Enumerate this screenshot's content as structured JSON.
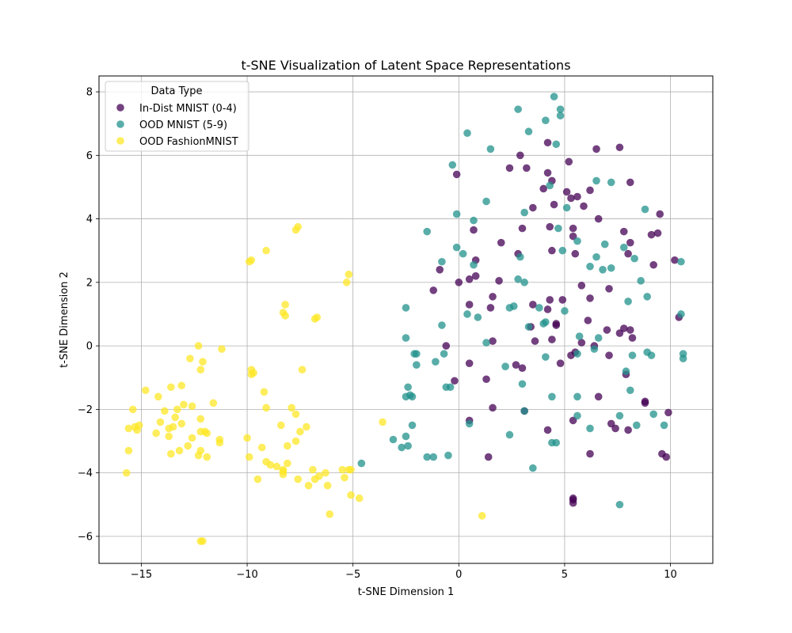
{
  "chart_data": {
    "type": "scatter",
    "title": "t-SNE Visualization of Latent Space Representations",
    "xlabel": "t-SNE Dimension 1",
    "ylabel": "t-SNE Dimension 2",
    "xlim": [
      -17,
      12
    ],
    "ylim": [
      -6.85,
      8.5
    ],
    "xticks": [
      -15,
      -10,
      -5,
      0,
      5,
      10
    ],
    "yticks": [
      -6,
      -4,
      -2,
      0,
      2,
      4,
      6,
      8
    ],
    "xtick_labels": [
      "−15",
      "−10",
      "−5",
      "0",
      "5",
      "10"
    ],
    "ytick_labels": [
      "−6",
      "−4",
      "−2",
      "0",
      "2",
      "4",
      "6",
      "8"
    ],
    "grid": true,
    "legend": {
      "title": "Data Type",
      "placement": "top-left"
    },
    "series": [
      {
        "name": "In-Dist MNIST (0-4)",
        "color": "#440154",
        "points": [
          [
            -0.1,
            5.4
          ],
          [
            -1.2,
            1.75
          ],
          [
            -0.9,
            2.4
          ],
          [
            -0.6,
            0.0
          ],
          [
            -0.2,
            -1.1
          ],
          [
            0.0,
            2.0
          ],
          [
            0.5,
            1.3
          ],
          [
            0.5,
            2.1
          ],
          [
            0.8,
            2.2
          ],
          [
            0.8,
            2.7
          ],
          [
            0.7,
            3.65
          ],
          [
            0.5,
            -0.55
          ],
          [
            0.5,
            -2.35
          ],
          [
            1.3,
            -1.05
          ],
          [
            1.4,
            -3.5
          ],
          [
            1.5,
            1.2
          ],
          [
            1.6,
            1.55
          ],
          [
            1.6,
            0.15
          ],
          [
            1.6,
            -1.95
          ],
          [
            1.9,
            2.05
          ],
          [
            2.0,
            3.25
          ],
          [
            2.4,
            5.6
          ],
          [
            2.9,
            6.0
          ],
          [
            2.8,
            2.9
          ],
          [
            2.7,
            -0.6
          ],
          [
            3.0,
            3.7
          ],
          [
            3.0,
            -0.7
          ],
          [
            3.1,
            -2.05
          ],
          [
            3.2,
            5.6
          ],
          [
            3.4,
            0.6
          ],
          [
            3.5,
            1.3
          ],
          [
            3.5,
            4.35
          ],
          [
            3.6,
            0.15
          ],
          [
            4.0,
            4.95
          ],
          [
            4.2,
            6.4
          ],
          [
            4.2,
            5.45
          ],
          [
            4.4,
            5.2
          ],
          [
            4.3,
            3.75
          ],
          [
            4.4,
            3.0
          ],
          [
            4.5,
            4.45
          ],
          [
            4.3,
            1.45
          ],
          [
            4.4,
            0.2
          ],
          [
            4.6,
            0.7
          ],
          [
            4.2,
            1.15
          ],
          [
            4.6,
            0.65
          ],
          [
            4.2,
            -2.65
          ],
          [
            4.9,
            1.45
          ],
          [
            4.8,
            -0.55
          ],
          [
            5.1,
            4.85
          ],
          [
            5.2,
            5.8
          ],
          [
            5.3,
            4.65
          ],
          [
            5.4,
            3.7
          ],
          [
            5.4,
            3.45
          ],
          [
            5.5,
            2.9
          ],
          [
            5.6,
            4.7
          ],
          [
            5.3,
            -0.3
          ],
          [
            5.5,
            -0.2
          ],
          [
            5.4,
            -2.35
          ],
          [
            5.4,
            -4.8
          ],
          [
            5.4,
            -4.85
          ],
          [
            5.4,
            -4.95
          ],
          [
            5.8,
            1.9
          ],
          [
            5.9,
            4.4
          ],
          [
            6.1,
            0.8
          ],
          [
            5.8,
            0.1
          ],
          [
            6.2,
            1.5
          ],
          [
            6.2,
            4.9
          ],
          [
            6.2,
            -3.4
          ],
          [
            6.4,
            0.0
          ],
          [
            6.5,
            6.2
          ],
          [
            6.6,
            4.0
          ],
          [
            6.6,
            -1.6
          ],
          [
            7.0,
            0.5
          ],
          [
            7.1,
            1.8
          ],
          [
            7.1,
            -0.3
          ],
          [
            7.2,
            -2.45
          ],
          [
            7.4,
            -2.6
          ],
          [
            7.6,
            6.25
          ],
          [
            7.6,
            0.4
          ],
          [
            7.8,
            3.6
          ],
          [
            7.8,
            0.55
          ],
          [
            8.0,
            2.9
          ],
          [
            8.1,
            5.15
          ],
          [
            8.1,
            3.25
          ],
          [
            8.1,
            0.5
          ],
          [
            8.2,
            0.25
          ],
          [
            7.9,
            -0.9
          ],
          [
            8.0,
            -2.65
          ],
          [
            8.8,
            -1.75
          ],
          [
            8.8,
            -1.8
          ],
          [
            9.1,
            3.5
          ],
          [
            9.2,
            2.55
          ],
          [
            9.4,
            3.55
          ],
          [
            9.5,
            4.15
          ],
          [
            9.6,
            -3.4
          ],
          [
            9.8,
            -3.5
          ],
          [
            9.9,
            -2.1
          ],
          [
            10.2,
            2.7
          ],
          [
            10.4,
            0.9
          ]
        ]
      },
      {
        "name": "OOD MNIST (5-9)",
        "color": "#21918c",
        "points": [
          [
            -4.6,
            -3.7
          ],
          [
            -3.1,
            -2.95
          ],
          [
            -2.7,
            -3.2
          ],
          [
            -2.5,
            1.2
          ],
          [
            -2.5,
            0.25
          ],
          [
            -2.5,
            -1.6
          ],
          [
            -2.5,
            -2.85
          ],
          [
            -2.4,
            -1.3
          ],
          [
            -2.4,
            -3.15
          ],
          [
            -2.3,
            -1.55
          ],
          [
            -2.2,
            -1.6
          ],
          [
            -2.2,
            -2.5
          ],
          [
            -2.1,
            -0.25
          ],
          [
            -2.0,
            -0.25
          ],
          [
            -2.0,
            -0.6
          ],
          [
            -1.5,
            3.6
          ],
          [
            -1.5,
            -3.5
          ],
          [
            -1.2,
            -3.5
          ],
          [
            -1.1,
            -0.5
          ],
          [
            -0.8,
            2.65
          ],
          [
            -0.8,
            0.65
          ],
          [
            -0.7,
            -0.25
          ],
          [
            -0.6,
            -1.3
          ],
          [
            -0.5,
            -3.45
          ],
          [
            -0.4,
            -1.3
          ],
          [
            -0.3,
            5.7
          ],
          [
            -0.1,
            4.15
          ],
          [
            -0.1,
            3.1
          ],
          [
            0.2,
            2.9
          ],
          [
            0.4,
            6.7
          ],
          [
            0.4,
            1.0
          ],
          [
            0.5,
            -2.45
          ],
          [
            0.7,
            3.95
          ],
          [
            0.7,
            2.55
          ],
          [
            0.9,
            0.9
          ],
          [
            1.3,
            4.55
          ],
          [
            1.3,
            0.1
          ],
          [
            1.5,
            6.2
          ],
          [
            2.2,
            -0.65
          ],
          [
            2.4,
            1.2
          ],
          [
            2.4,
            -2.8
          ],
          [
            2.6,
            1.25
          ],
          [
            2.8,
            7.45
          ],
          [
            2.8,
            2.1
          ],
          [
            2.9,
            2.8
          ],
          [
            3.0,
            -1.2
          ],
          [
            3.1,
            4.2
          ],
          [
            3.1,
            2.0
          ],
          [
            3.1,
            -2.05
          ],
          [
            3.3,
            6.75
          ],
          [
            3.3,
            0.6
          ],
          [
            3.5,
            -3.85
          ],
          [
            3.8,
            1.2
          ],
          [
            4.0,
            0.7
          ],
          [
            4.1,
            7.1
          ],
          [
            4.1,
            0.75
          ],
          [
            4.1,
            -0.35
          ],
          [
            4.3,
            5.05
          ],
          [
            4.4,
            -1.6
          ],
          [
            4.4,
            -3.05
          ],
          [
            4.5,
            7.85
          ],
          [
            4.6,
            6.35
          ],
          [
            4.6,
            -3.05
          ],
          [
            4.7,
            3.7
          ],
          [
            4.8,
            7.25
          ],
          [
            4.8,
            7.45
          ],
          [
            4.9,
            3.0
          ],
          [
            5.0,
            1.1
          ],
          [
            5.1,
            4.35
          ],
          [
            5.6,
            3.3
          ],
          [
            5.7,
            0.3
          ],
          [
            5.6,
            -1.6
          ],
          [
            5.6,
            -2.2
          ],
          [
            5.6,
            -0.25
          ],
          [
            6.2,
            2.5
          ],
          [
            6.2,
            -2.6
          ],
          [
            6.4,
            -0.1
          ],
          [
            6.5,
            5.2
          ],
          [
            6.5,
            2.8
          ],
          [
            6.6,
            0.25
          ],
          [
            6.8,
            2.4
          ],
          [
            6.9,
            3.2
          ],
          [
            7.2,
            5.15
          ],
          [
            7.2,
            2.45
          ],
          [
            7.6,
            -2.2
          ],
          [
            7.6,
            -5.0
          ],
          [
            7.8,
            3.1
          ],
          [
            7.9,
            -0.8
          ],
          [
            8.0,
            1.4
          ],
          [
            8.1,
            -1.4
          ],
          [
            8.2,
            -0.3
          ],
          [
            8.3,
            2.75
          ],
          [
            8.4,
            -2.5
          ],
          [
            8.6,
            2.05
          ],
          [
            8.8,
            4.3
          ],
          [
            8.9,
            1.55
          ],
          [
            8.9,
            -0.2
          ],
          [
            9.1,
            -0.3
          ],
          [
            9.2,
            -2.15
          ],
          [
            9.7,
            -2.5
          ],
          [
            10.5,
            2.65
          ],
          [
            10.5,
            1.0
          ],
          [
            10.6,
            -0.25
          ],
          [
            10.6,
            -0.4
          ]
        ]
      },
      {
        "name": "OOD FashionMNIST",
        "color": "#fde725",
        "points": [
          [
            -15.7,
            -4.0
          ],
          [
            -15.6,
            -3.3
          ],
          [
            -15.6,
            -2.6
          ],
          [
            -15.4,
            -2.0
          ],
          [
            -15.3,
            -2.55
          ],
          [
            -15.2,
            -2.65
          ],
          [
            -15.1,
            -2.5
          ],
          [
            -14.8,
            -1.4
          ],
          [
            -14.3,
            -2.75
          ],
          [
            -14.2,
            -1.6
          ],
          [
            -14.1,
            -2.4
          ],
          [
            -13.9,
            -2.05
          ],
          [
            -13.7,
            -2.6
          ],
          [
            -13.7,
            -2.85
          ],
          [
            -13.6,
            -1.3
          ],
          [
            -13.6,
            -3.4
          ],
          [
            -13.5,
            -2.55
          ],
          [
            -13.4,
            -2.25
          ],
          [
            -13.3,
            -2.0
          ],
          [
            -13.2,
            -3.3
          ],
          [
            -13.1,
            -1.25
          ],
          [
            -13.1,
            -2.45
          ],
          [
            -13.0,
            -1.85
          ],
          [
            -12.8,
            -3.15
          ],
          [
            -12.7,
            -0.4
          ],
          [
            -12.6,
            -1.9
          ],
          [
            -12.6,
            -2.9
          ],
          [
            -12.3,
            0.0
          ],
          [
            -12.2,
            -0.75
          ],
          [
            -12.2,
            -2.3
          ],
          [
            -12.1,
            -0.5
          ],
          [
            -12.2,
            -2.7
          ],
          [
            -12.2,
            -3.3
          ],
          [
            -12.3,
            -3.45
          ],
          [
            -12.0,
            -2.7
          ],
          [
            -11.9,
            -2.75
          ],
          [
            -11.9,
            -3.5
          ],
          [
            -11.6,
            -1.8
          ],
          [
            -11.3,
            -2.95
          ],
          [
            -11.2,
            -0.1
          ],
          [
            -11.3,
            -3.05
          ],
          [
            -12.1,
            -6.15
          ],
          [
            -12.2,
            -6.15
          ],
          [
            -10.0,
            -2.9
          ],
          [
            -9.9,
            -3.5
          ],
          [
            -9.9,
            2.65
          ],
          [
            -9.8,
            2.7
          ],
          [
            -9.8,
            -0.75
          ],
          [
            -9.7,
            -0.85
          ],
          [
            -9.8,
            -0.9
          ],
          [
            -9.5,
            -4.2
          ],
          [
            -9.3,
            -3.2
          ],
          [
            -9.2,
            -1.45
          ],
          [
            -9.1,
            -3.65
          ],
          [
            -9.1,
            -1.95
          ],
          [
            -9.1,
            3.0
          ],
          [
            -8.9,
            -3.75
          ],
          [
            -8.6,
            -3.8
          ],
          [
            -8.4,
            -2.5
          ],
          [
            -8.3,
            -3.9
          ],
          [
            -8.3,
            -3.95
          ],
          [
            -8.3,
            -4.05
          ],
          [
            -8.2,
            1.3
          ],
          [
            -8.3,
            1.05
          ],
          [
            -8.2,
            0.95
          ],
          [
            -8.1,
            -3.7
          ],
          [
            -8.1,
            -3.15
          ],
          [
            -7.9,
            -1.95
          ],
          [
            -7.7,
            3.65
          ],
          [
            -7.6,
            3.75
          ],
          [
            -7.7,
            -2.15
          ],
          [
            -7.7,
            -3.0
          ],
          [
            -7.6,
            -4.2
          ],
          [
            -7.5,
            -2.7
          ],
          [
            -7.4,
            -0.75
          ],
          [
            -7.2,
            -2.55
          ],
          [
            -7.1,
            -4.4
          ],
          [
            -6.9,
            -3.9
          ],
          [
            -6.8,
            -4.2
          ],
          [
            -6.8,
            0.85
          ],
          [
            -6.7,
            0.9
          ],
          [
            -6.6,
            -4.1
          ],
          [
            -6.3,
            -4.0
          ],
          [
            -6.2,
            -4.4
          ],
          [
            -6.1,
            -5.3
          ],
          [
            -5.5,
            -3.9
          ],
          [
            -5.4,
            -4.15
          ],
          [
            -5.3,
            2.0
          ],
          [
            -5.2,
            2.25
          ],
          [
            -5.2,
            -3.9
          ],
          [
            -5.1,
            -3.9
          ],
          [
            -5.1,
            -4.7
          ],
          [
            -4.7,
            -4.8
          ],
          [
            -3.6,
            -2.4
          ],
          [
            1.1,
            -5.35
          ]
        ]
      }
    ]
  }
}
